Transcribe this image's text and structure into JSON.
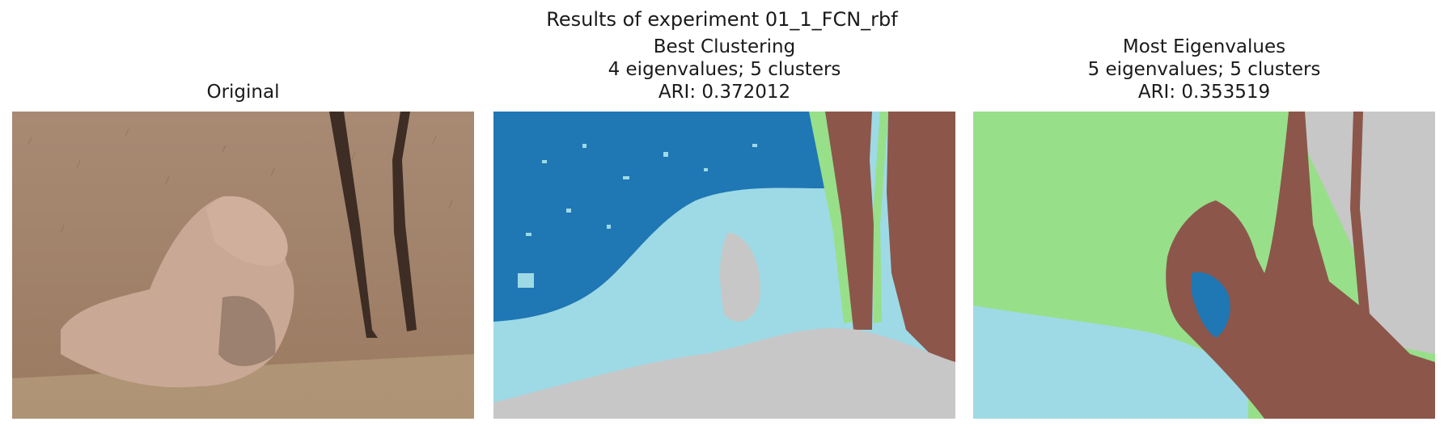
{
  "figure": {
    "suptitle": "Results of experiment 01_1_FCN_rbf"
  },
  "panels": [
    {
      "id": "original",
      "title_lines": [
        "Original"
      ]
    },
    {
      "id": "best",
      "title_lines": [
        "Best Clustering",
        "4 eigenvalues; 5 clusters",
        "ARI: 0.372012"
      ]
    },
    {
      "id": "most",
      "title_lines": [
        "Most Eigenvalues",
        "5 eigenvalues; 5 clusters",
        "ARI: 0.353519"
      ]
    }
  ],
  "colors": {
    "cluster_dark_blue": "#1f77b4",
    "cluster_light_blue": "#9edae5",
    "cluster_green": "#98df8a",
    "cluster_brown": "#8c564b",
    "cluster_gray": "#c7c7c7",
    "photo_ground": "#a8876c",
    "photo_tree": "#3f2f26",
    "photo_lion": "#c8a892"
  }
}
